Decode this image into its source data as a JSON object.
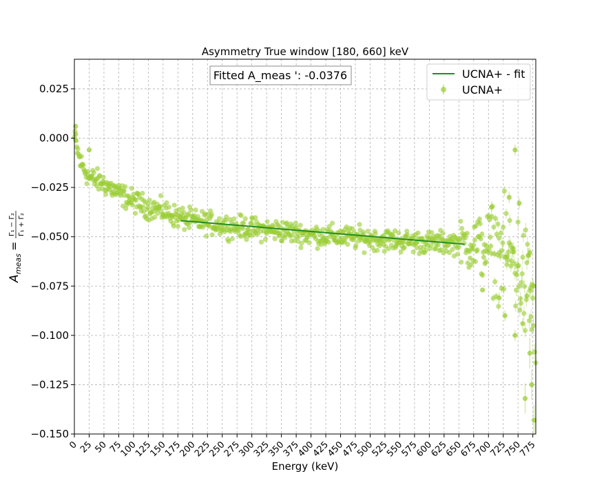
{
  "chart_data": {
    "type": "scatter",
    "title": "Asymmetry True window [180, 660] keV",
    "xlabel": "Energy (keV)",
    "ylabel_main": "A",
    "ylabel_sub": "meas",
    "ylabel_eq": "=",
    "ylabel_num": "Γ₁ − Γ₂",
    "ylabel_den": "Γ₁ + Γ₂",
    "xlim": [
      0,
      780
    ],
    "ylim": [
      -0.15,
      0.04
    ],
    "grid": true,
    "legend_position": "top-right",
    "x_ticks": [
      "0",
      "25",
      "50",
      "75",
      "100",
      "125",
      "150",
      "175",
      "200",
      "225",
      "250",
      "275",
      "300",
      "325",
      "350",
      "375",
      "400",
      "425",
      "450",
      "475",
      "500",
      "525",
      "550",
      "575",
      "600",
      "625",
      "650",
      "675",
      "700",
      "725",
      "750",
      "775"
    ],
    "y_ticks": [
      "0.025",
      "0.000",
      "−0.025",
      "−0.050",
      "−0.075",
      "−0.100",
      "−0.125",
      "−0.150"
    ],
    "y_tick_values": [
      0.025,
      0.0,
      -0.025,
      -0.05,
      -0.075,
      -0.1,
      -0.125,
      -0.15
    ],
    "annotation": "Fitted A_meas ': -0.0376",
    "colors": {
      "points": "#9acd32",
      "fit": "#228b22",
      "grid": "#b0b0b0"
    },
    "series": [
      {
        "name": "UCNA+ - fit",
        "kind": "line",
        "x": [
          180,
          660
        ],
        "y": [
          -0.0418,
          -0.0538
        ]
      },
      {
        "name": "UCNA+",
        "kind": "scatter-errorbar",
        "trend_x": [
          0,
          10,
          25,
          50,
          75,
          100,
          125,
          150,
          175,
          200,
          250,
          300,
          350,
          400,
          450,
          500,
          550,
          600,
          650,
          700,
          740,
          770,
          780
        ],
        "trend_y": [
          0.0,
          -0.012,
          -0.02,
          -0.023,
          -0.028,
          -0.032,
          -0.035,
          -0.037,
          -0.04,
          -0.042,
          -0.044,
          -0.046,
          -0.047,
          -0.049,
          -0.05,
          -0.051,
          -0.052,
          -0.053,
          -0.053,
          -0.055,
          -0.06,
          -0.08,
          -0.1
        ],
        "outliers": [
          {
            "x": 2,
            "y": 0.006
          },
          {
            "x": 2,
            "y": 0.002
          },
          {
            "x": 25,
            "y": -0.006
          },
          {
            "x": 745,
            "y": -0.006
          },
          {
            "x": 735,
            "y": -0.03
          },
          {
            "x": 752,
            "y": -0.033
          },
          {
            "x": 705,
            "y": -0.035
          },
          {
            "x": 728,
            "y": -0.09
          },
          {
            "x": 745,
            "y": -0.1
          },
          {
            "x": 690,
            "y": -0.077
          },
          {
            "x": 718,
            "y": -0.081
          },
          {
            "x": 762,
            "y": -0.132
          },
          {
            "x": 773,
            "y": -0.125
          },
          {
            "x": 777,
            "y": -0.143
          },
          {
            "x": 770,
            "y": -0.109
          },
          {
            "x": 758,
            "y": -0.094
          },
          {
            "x": 765,
            "y": -0.08
          },
          {
            "x": 776,
            "y": -0.075
          },
          {
            "x": 770,
            "y": -0.058
          }
        ]
      }
    ]
  }
}
